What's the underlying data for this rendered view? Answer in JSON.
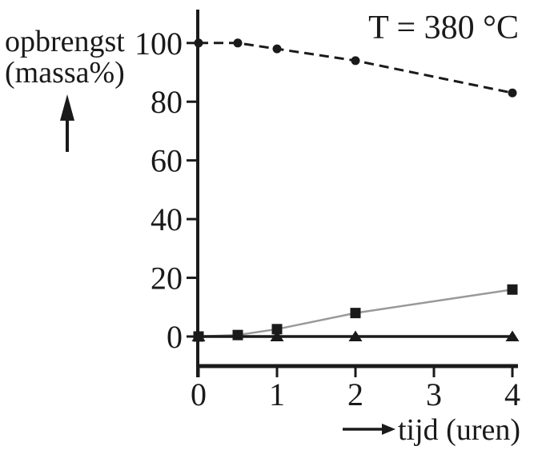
{
  "figure": {
    "background": "#ffffff",
    "ink_color": "#1a1a1a",
    "gray_line_color": "#999999"
  },
  "chart_data": {
    "type": "line",
    "title": "",
    "annotation": "T = 380 °C",
    "xlabel": "tijd (uren)",
    "ylabel": "opbrengst (massa%)",
    "ylabel_line1": "opbrengst",
    "ylabel_line2": "(massa%)",
    "xlim": [
      0,
      4.1
    ],
    "ylim": [
      -8,
      108
    ],
    "grid": false,
    "legend": "none",
    "x_ticks": [
      0,
      1,
      2,
      3,
      4
    ],
    "y_ticks": [
      0,
      20,
      40,
      60,
      80,
      100
    ],
    "series": [
      {
        "name": "circle-series",
        "marker": "circle",
        "line_style": "dashed",
        "color": "#1a1a1a",
        "points": [
          [
            0,
            100
          ],
          [
            0.5,
            100
          ],
          [
            1,
            98
          ],
          [
            2,
            94
          ],
          [
            4,
            83
          ]
        ]
      },
      {
        "name": "square-series",
        "marker": "square",
        "line_style": "solid",
        "color": "#999999",
        "marker_color": "#1a1a1a",
        "points": [
          [
            0,
            0
          ],
          [
            0.5,
            0.5
          ],
          [
            1,
            2.5
          ],
          [
            2,
            8
          ],
          [
            4,
            16
          ]
        ]
      },
      {
        "name": "triangle-series",
        "marker": "triangle",
        "line_style": "solid",
        "color": "#1a1a1a",
        "points": [
          [
            0,
            0
          ],
          [
            1,
            0
          ],
          [
            2,
            0
          ],
          [
            4,
            0
          ]
        ]
      }
    ]
  }
}
